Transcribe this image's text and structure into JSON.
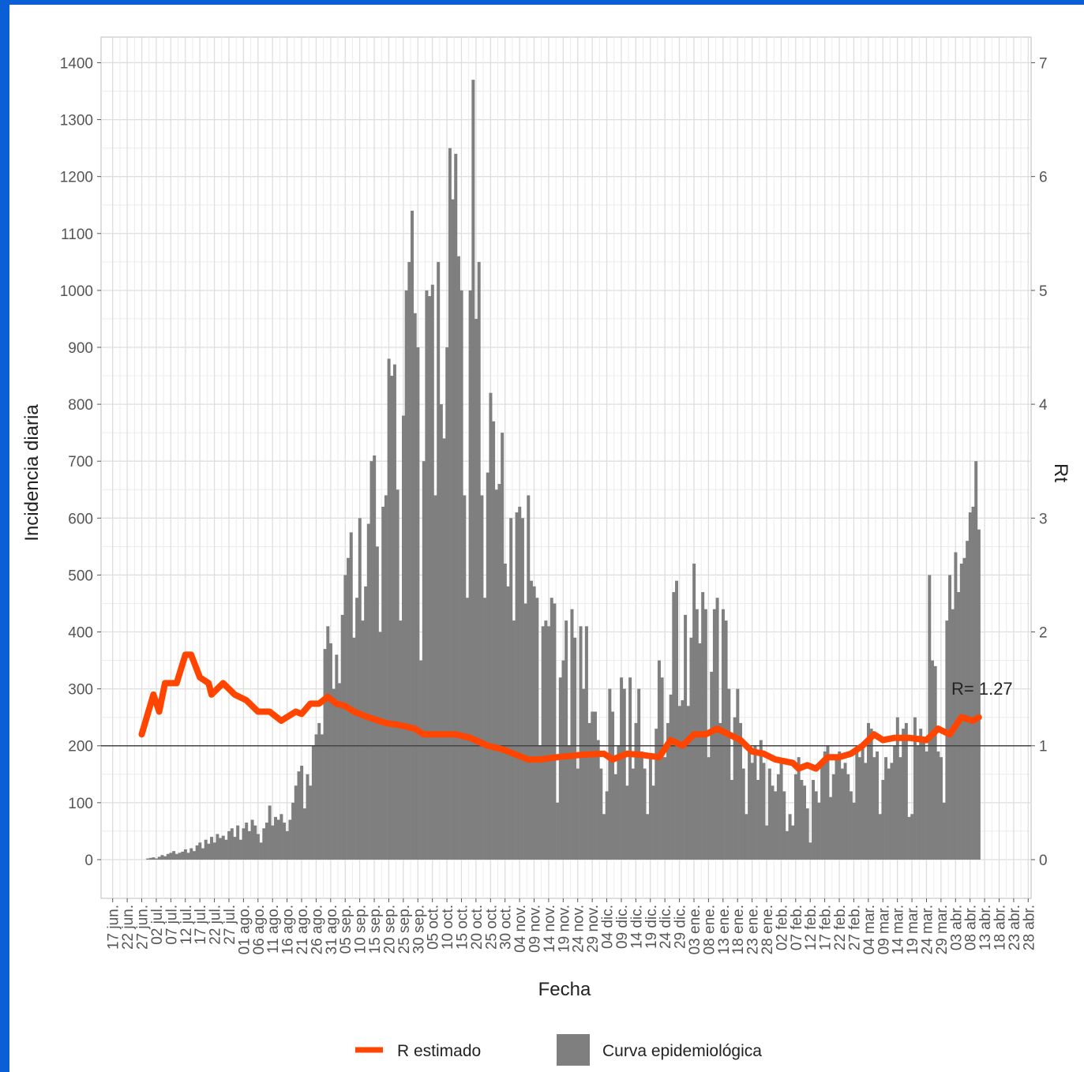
{
  "chart_data": {
    "type": "combo",
    "x_label": "Fecha",
    "y_label": "Incidencia diaria",
    "y2_label": "Rt",
    "annotation": "R= 1.27",
    "reference_line": {
      "axis": "y2",
      "value": 1
    },
    "xlim": [
      -4,
      316
    ],
    "ylim": [
      -68,
      1445
    ],
    "y2lim": [
      -0.34,
      7.225
    ],
    "yticks": [
      0,
      100,
      200,
      300,
      400,
      500,
      600,
      700,
      800,
      900,
      1000,
      1100,
      1200,
      1300,
      1400
    ],
    "y2ticks": [
      0,
      1,
      2,
      3,
      4,
      5,
      6,
      7
    ],
    "xticks": [
      {
        "value": 0,
        "label": "17 jun."
      },
      {
        "value": 5,
        "label": "22 jun."
      },
      {
        "value": 10,
        "label": "27 jun."
      },
      {
        "value": 15,
        "label": "02 jul."
      },
      {
        "value": 20,
        "label": "07 jul."
      },
      {
        "value": 25,
        "label": "12 jul."
      },
      {
        "value": 30,
        "label": "17 jul."
      },
      {
        "value": 35,
        "label": "22 jul."
      },
      {
        "value": 40,
        "label": "27 jul."
      },
      {
        "value": 45,
        "label": "01 ago."
      },
      {
        "value": 50,
        "label": "06 ago."
      },
      {
        "value": 55,
        "label": "11 ago."
      },
      {
        "value": 60,
        "label": "16 ago."
      },
      {
        "value": 65,
        "label": "21 ago."
      },
      {
        "value": 70,
        "label": "26 ago."
      },
      {
        "value": 75,
        "label": "31 ago."
      },
      {
        "value": 80,
        "label": "05 sep."
      },
      {
        "value": 85,
        "label": "10 sep."
      },
      {
        "value": 90,
        "label": "15 sep."
      },
      {
        "value": 95,
        "label": "20 sep."
      },
      {
        "value": 100,
        "label": "25 sep."
      },
      {
        "value": 105,
        "label": "30 sep."
      },
      {
        "value": 110,
        "label": "05 oct."
      },
      {
        "value": 115,
        "label": "10 oct."
      },
      {
        "value": 120,
        "label": "15 oct."
      },
      {
        "value": 125,
        "label": "20 oct."
      },
      {
        "value": 130,
        "label": "25 oct."
      },
      {
        "value": 135,
        "label": "30 oct."
      },
      {
        "value": 140,
        "label": "04 nov."
      },
      {
        "value": 145,
        "label": "09 nov."
      },
      {
        "value": 150,
        "label": "14 nov."
      },
      {
        "value": 155,
        "label": "19 nov."
      },
      {
        "value": 160,
        "label": "24 nov."
      },
      {
        "value": 165,
        "label": "29 nov."
      },
      {
        "value": 170,
        "label": "04 dic."
      },
      {
        "value": 175,
        "label": "09 dic."
      },
      {
        "value": 180,
        "label": "14 dic."
      },
      {
        "value": 185,
        "label": "19 dic."
      },
      {
        "value": 190,
        "label": "24 dic."
      },
      {
        "value": 195,
        "label": "29 dic."
      },
      {
        "value": 200,
        "label": "03 ene."
      },
      {
        "value": 205,
        "label": "08 ene."
      },
      {
        "value": 210,
        "label": "13 ene."
      },
      {
        "value": 215,
        "label": "18 ene."
      },
      {
        "value": 220,
        "label": "23 ene."
      },
      {
        "value": 225,
        "label": "28 ene."
      },
      {
        "value": 230,
        "label": "02 feb."
      },
      {
        "value": 235,
        "label": "07 feb."
      },
      {
        "value": 240,
        "label": "12 feb."
      },
      {
        "value": 245,
        "label": "17 feb."
      },
      {
        "value": 250,
        "label": "22 feb."
      },
      {
        "value": 255,
        "label": "27 feb."
      },
      {
        "value": 260,
        "label": "04 mar."
      },
      {
        "value": 265,
        "label": "09 mar."
      },
      {
        "value": 270,
        "label": "14 mar."
      },
      {
        "value": 275,
        "label": "19 mar."
      },
      {
        "value": 280,
        "label": "24 mar."
      },
      {
        "value": 285,
        "label": "29 mar."
      },
      {
        "value": 290,
        "label": "03 abr."
      },
      {
        "value": 295,
        "label": "08 abr."
      },
      {
        "value": 300,
        "label": "13 abr."
      },
      {
        "value": 305,
        "label": "18 abr."
      },
      {
        "value": 310,
        "label": "23 abr."
      },
      {
        "value": 315,
        "label": "28 abr."
      }
    ],
    "grid": true,
    "series": [
      {
        "name": "Curva epidemiológica",
        "type": "bar",
        "color": "#7f7f7f",
        "x": [
          12,
          13,
          14,
          15,
          16,
          17,
          18,
          19,
          20,
          21,
          22,
          23,
          24,
          25,
          26,
          27,
          28,
          29,
          30,
          31,
          32,
          33,
          34,
          35,
          36,
          37,
          38,
          39,
          40,
          41,
          42,
          43,
          44,
          45,
          46,
          47,
          48,
          49,
          50,
          51,
          52,
          53,
          54,
          55,
          56,
          57,
          58,
          59,
          60,
          61,
          62,
          63,
          64,
          65,
          66,
          67,
          68,
          69,
          70,
          71,
          72,
          73,
          74,
          75,
          76,
          77,
          78,
          79,
          80,
          81,
          82,
          83,
          84,
          85,
          86,
          87,
          88,
          89,
          90,
          91,
          92,
          93,
          94,
          95,
          96,
          97,
          98,
          99,
          100,
          101,
          102,
          103,
          104,
          105,
          106,
          107,
          108,
          109,
          110,
          111,
          112,
          113,
          114,
          115,
          116,
          117,
          118,
          119,
          120,
          121,
          122,
          123,
          124,
          125,
          126,
          127,
          128,
          129,
          130,
          131,
          132,
          133,
          134,
          135,
          136,
          137,
          138,
          139,
          140,
          141,
          142,
          143,
          144,
          145,
          146,
          147,
          148,
          149,
          150,
          151,
          152,
          153,
          154,
          155,
          156,
          157,
          158,
          159,
          160,
          161,
          162,
          163,
          164,
          165,
          166,
          167,
          168,
          169,
          170,
          171,
          172,
          173,
          174,
          175,
          176,
          177,
          178,
          179,
          180,
          181,
          182,
          183,
          184,
          185,
          186,
          187,
          188,
          189,
          190,
          191,
          192,
          193,
          194,
          195,
          196,
          197,
          198,
          199,
          200,
          201,
          202,
          203,
          204,
          205,
          206,
          207,
          208,
          209,
          210,
          211,
          212,
          213,
          214,
          215,
          216,
          217,
          218,
          219,
          220,
          221,
          222,
          223,
          224,
          225,
          226,
          227,
          228,
          229,
          230,
          231,
          232,
          233,
          234,
          235,
          236,
          237,
          238,
          239,
          240,
          241,
          242,
          243,
          244,
          245,
          246,
          247,
          248,
          249,
          250,
          251,
          252,
          253,
          254,
          255,
          256,
          257,
          258,
          259,
          260,
          261,
          262,
          263,
          264,
          265,
          266,
          267,
          268,
          269,
          270,
          271,
          272,
          273,
          274,
          275,
          276,
          277,
          278,
          279,
          280,
          281,
          282,
          283,
          284,
          285,
          286,
          287,
          288,
          289,
          290,
          291,
          292,
          293,
          294,
          295,
          296,
          297,
          298
        ],
        "values": [
          2,
          3,
          4,
          2,
          5,
          8,
          6,
          10,
          12,
          15,
          10,
          12,
          14,
          18,
          12,
          20,
          15,
          25,
          30,
          20,
          35,
          28,
          40,
          30,
          45,
          38,
          42,
          35,
          50,
          55,
          40,
          60,
          35,
          55,
          65,
          50,
          70,
          60,
          45,
          30,
          55,
          65,
          95,
          60,
          75,
          70,
          80,
          65,
          50,
          70,
          100,
          130,
          155,
          165,
          90,
          150,
          130,
          200,
          220,
          240,
          220,
          370,
          410,
          380,
          300,
          360,
          310,
          430,
          500,
          530,
          575,
          390,
          460,
          600,
          420,
          480,
          590,
          700,
          710,
          550,
          400,
          620,
          640,
          880,
          850,
          870,
          650,
          420,
          780,
          1000,
          1050,
          1140,
          960,
          900,
          350,
          700,
          1000,
          990,
          1010,
          640,
          1050,
          800,
          740,
          900,
          1250,
          1160,
          1240,
          1060,
          1000,
          640,
          460,
          1000,
          1370,
          950,
          1050,
          640,
          460,
          680,
          820,
          770,
          650,
          660,
          750,
          520,
          480,
          600,
          420,
          610,
          620,
          600,
          450,
          640,
          490,
          480,
          460,
          200,
          410,
          420,
          410,
          460,
          450,
          100,
          320,
          350,
          420,
          200,
          440,
          390,
          160,
          410,
          300,
          410,
          240,
          260,
          260,
          210,
          160,
          80,
          120,
          300,
          260,
          150,
          200,
          320,
          300,
          130,
          320,
          160,
          240,
          300,
          190,
          160,
          80,
          180,
          130,
          230,
          350,
          320,
          180,
          240,
          290,
          470,
          490,
          270,
          280,
          430,
          270,
          390,
          520,
          440,
          380,
          470,
          440,
          180,
          330,
          440,
          460,
          240,
          440,
          420,
          300,
          140,
          250,
          300,
          240,
          160,
          80,
          190,
          170,
          200,
          140,
          210,
          170,
          60,
          160,
          130,
          120,
          150,
          170,
          120,
          50,
          80,
          60,
          150,
          180,
          140,
          130,
          90,
          30,
          140,
          120,
          100,
          170,
          190,
          200,
          110,
          150,
          180,
          190,
          160,
          170,
          150,
          120,
          100,
          190,
          180,
          200,
          170,
          240,
          230,
          180,
          190,
          80,
          140,
          180,
          160,
          170,
          200,
          250,
          180,
          230,
          240,
          75,
          80,
          250,
          200,
          230,
          210,
          190,
          500,
          350,
          340,
          190,
          180,
          100,
          420,
          500,
          440,
          540,
          470,
          520,
          530,
          560,
          610,
          620,
          700,
          580
        ]
      },
      {
        "name": "R estimado",
        "type": "line",
        "axis": "y2",
        "color": "#ff4500",
        "x": [
          10,
          14,
          16,
          18,
          22,
          25,
          27,
          30,
          33,
          34,
          38,
          42,
          46,
          50,
          54,
          58,
          63,
          65,
          68,
          71,
          74,
          77,
          80,
          83,
          88,
          94,
          99,
          104,
          107,
          112,
          118,
          123,
          129,
          134,
          139,
          143,
          147,
          153,
          161,
          169,
          172,
          177,
          182,
          188,
          192,
          196,
          200,
          204,
          208,
          212,
          216,
          220,
          224,
          228,
          234,
          236,
          239,
          242,
          246,
          250,
          254,
          258,
          262,
          265,
          269,
          274,
          280,
          284,
          288,
          292,
          296,
          298
        ],
        "values": [
          1.1,
          1.45,
          1.3,
          1.55,
          1.55,
          1.8,
          1.8,
          1.6,
          1.55,
          1.45,
          1.55,
          1.45,
          1.4,
          1.3,
          1.3,
          1.22,
          1.3,
          1.28,
          1.37,
          1.37,
          1.43,
          1.37,
          1.35,
          1.3,
          1.25,
          1.2,
          1.18,
          1.15,
          1.1,
          1.1,
          1.1,
          1.07,
          1.0,
          0.97,
          0.92,
          0.88,
          0.88,
          0.9,
          0.92,
          0.93,
          0.88,
          0.93,
          0.92,
          0.9,
          1.05,
          1.0,
          1.1,
          1.1,
          1.15,
          1.1,
          1.05,
          0.95,
          0.93,
          0.88,
          0.85,
          0.8,
          0.83,
          0.8,
          0.9,
          0.9,
          0.93,
          1.0,
          1.1,
          1.05,
          1.07,
          1.07,
          1.05,
          1.15,
          1.1,
          1.25,
          1.22,
          1.25
        ]
      }
    ]
  }
}
